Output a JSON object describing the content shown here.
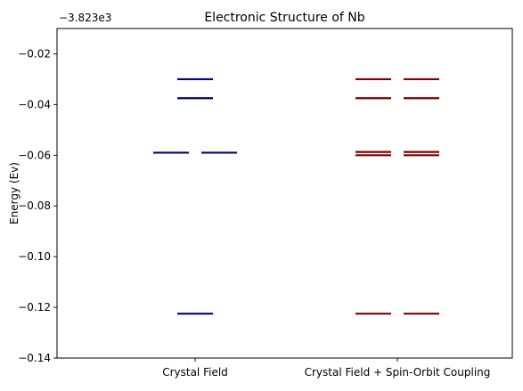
{
  "chart_data": {
    "type": "scatter",
    "title": "Electronic Structure of Nb",
    "xlabel": "",
    "ylabel": "Energy (Ev)",
    "offset_label": "−3.823e3",
    "ylim": [
      -0.14,
      -0.01
    ],
    "yticks": [
      -0.02,
      -0.04,
      -0.06,
      -0.08,
      -0.1,
      -0.12,
      -0.14
    ],
    "ytick_labels": [
      "−0.02",
      "−0.04",
      "−0.06",
      "−0.08",
      "−0.10",
      "−0.12",
      "−0.14"
    ],
    "categories": [
      "Crystal Field",
      "Crystal Field + Spin-Orbit Coupling"
    ],
    "colors": {
      "crystal_field": "#000080",
      "spin_orbit": "#800000"
    },
    "levels": [
      {
        "category": "Crystal Field",
        "color": "#000080",
        "energies": [
          {
            "pos": "center",
            "y": -0.03
          },
          {
            "pos": "center",
            "y": -0.0375
          },
          {
            "pos": "left",
            "y": -0.059
          },
          {
            "pos": "right",
            "y": -0.059
          },
          {
            "pos": "center",
            "y": -0.1225
          }
        ]
      },
      {
        "category": "Crystal Field + Spin-Orbit Coupling",
        "color": "#800000",
        "energies": [
          {
            "pos": "left",
            "y": -0.03
          },
          {
            "pos": "right",
            "y": -0.03
          },
          {
            "pos": "left",
            "y": -0.0375
          },
          {
            "pos": "right",
            "y": -0.0375
          },
          {
            "pos": "left",
            "y": -0.0587
          },
          {
            "pos": "right",
            "y": -0.0587
          },
          {
            "pos": "left",
            "y": -0.06
          },
          {
            "pos": "right",
            "y": -0.06
          },
          {
            "pos": "left",
            "y": -0.1225
          },
          {
            "pos": "right",
            "y": -0.1225
          }
        ]
      }
    ]
  }
}
